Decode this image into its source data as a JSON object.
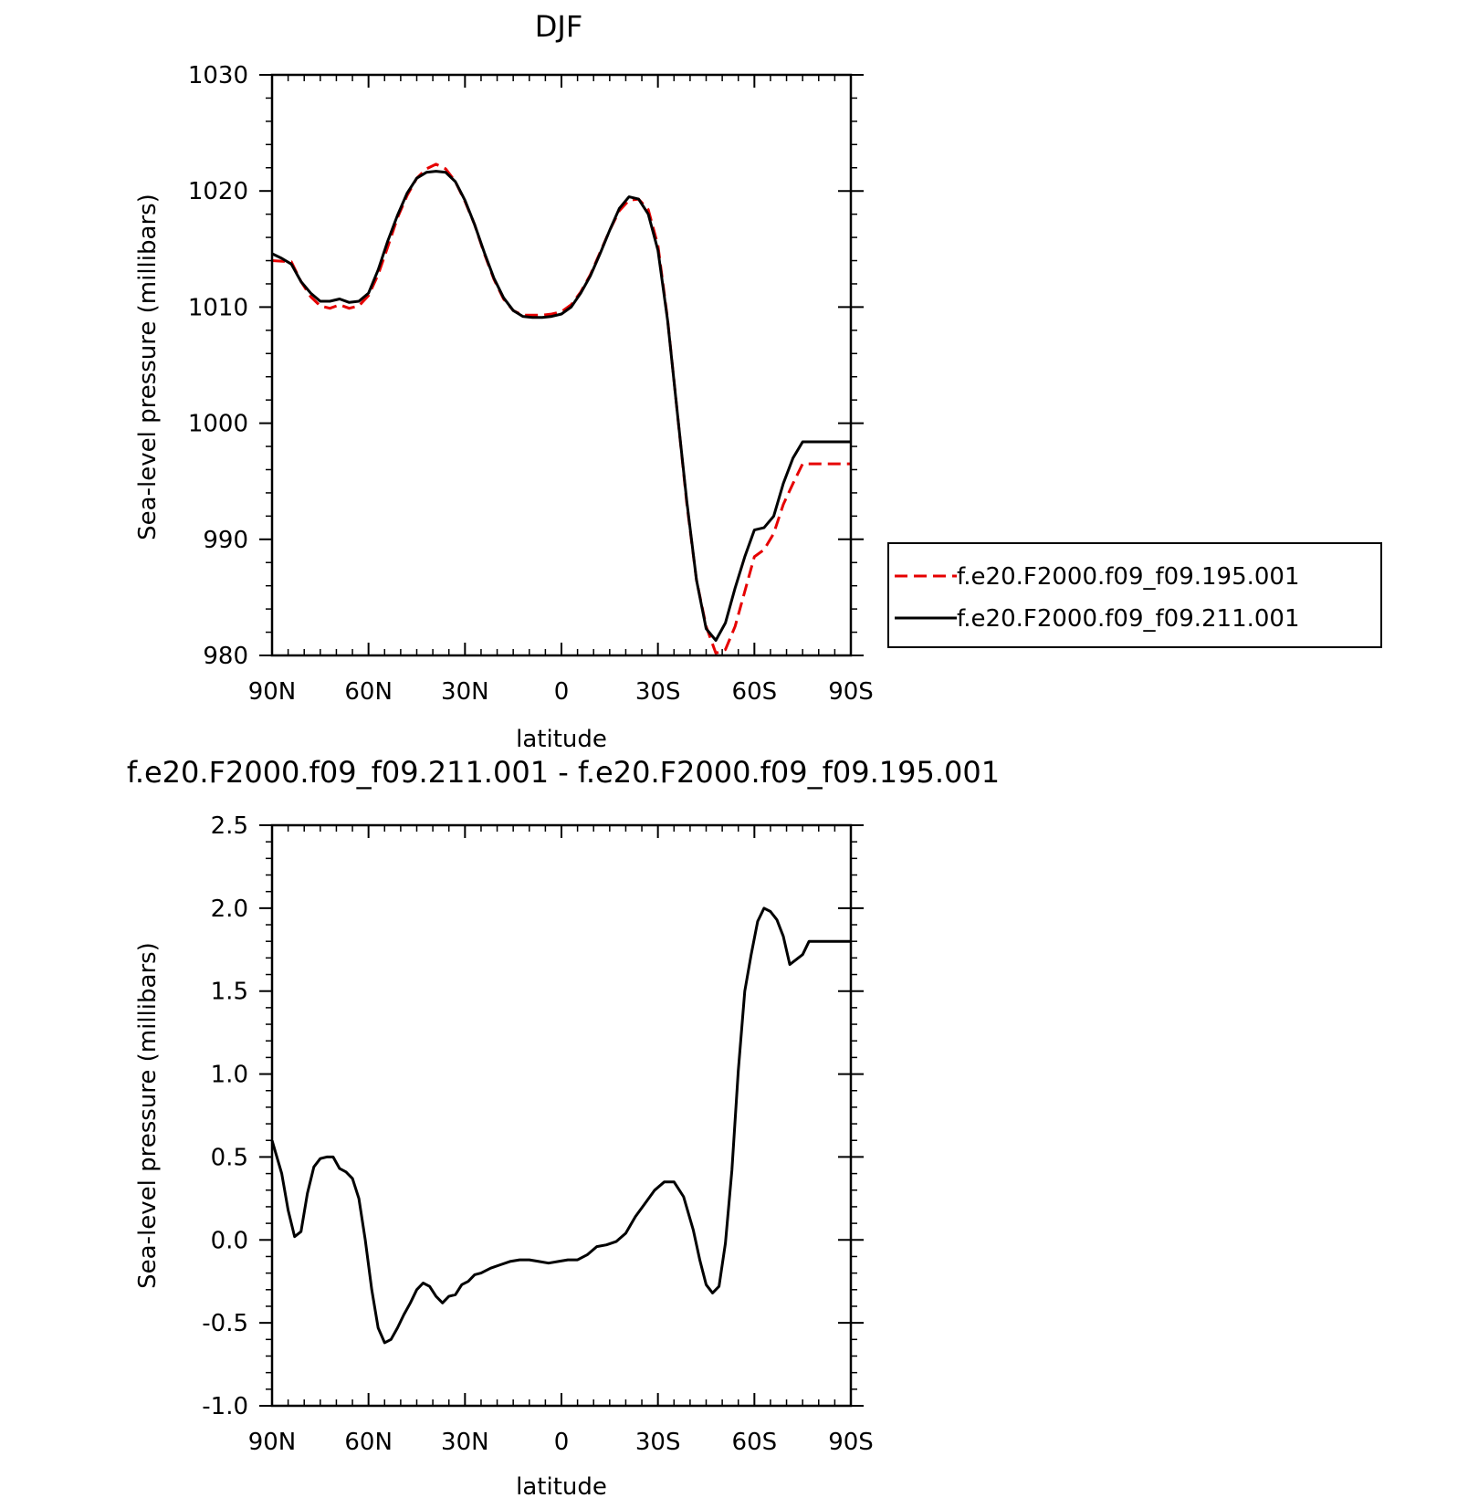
{
  "chart_data": [
    {
      "type": "line",
      "title": "DJF",
      "xlabel": "latitude",
      "ylabel": "Sea-level pressure (millibars)",
      "xlim": [
        90,
        -90
      ],
      "ylim": [
        980,
        1030
      ],
      "x_tick_values": [
        90,
        60,
        30,
        0,
        -30,
        -60,
        -90
      ],
      "x_tick_labels": [
        "90N",
        "60N",
        "30N",
        "0",
        "30S",
        "60S",
        "90S"
      ],
      "y_tick_values": [
        980,
        990,
        1000,
        1010,
        1020,
        1030
      ],
      "y_tick_labels": [
        "980",
        "990",
        "1000",
        "1010",
        "1020",
        "1030"
      ],
      "legend_position": "right",
      "series": [
        {
          "name": "f.e20.F2000.f09_f09.195.001",
          "color": "#e60000",
          "style": "dashed",
          "x": [
            90,
            84,
            81,
            78,
            75,
            72,
            69,
            66,
            63,
            60,
            57,
            54,
            51,
            48,
            45,
            42,
            39,
            36,
            33,
            30,
            27,
            24,
            21,
            18,
            15,
            12,
            9,
            6,
            3,
            0,
            -3,
            -6,
            -9,
            -12,
            -15,
            -18,
            -21,
            -24,
            -27,
            -30,
            -33,
            -36,
            -39,
            -42,
            -45,
            -48,
            -51,
            -54,
            -57,
            -60,
            -63,
            -65,
            -66,
            -69,
            -72,
            -75,
            -78,
            -81,
            -84,
            -87,
            -90
          ],
          "y": [
            1014.0,
            1013.9,
            1012.2,
            1010.9,
            1010.1,
            1009.9,
            1010.2,
            1009.9,
            1010.1,
            1011.0,
            1012.8,
            1015.2,
            1017.7,
            1019.6,
            1021.1,
            1021.9,
            1022.3,
            1021.9,
            1020.8,
            1019.1,
            1017.1,
            1014.6,
            1012.4,
            1010.7,
            1009.7,
            1009.3,
            1009.3,
            1009.3,
            1009.4,
            1009.6,
            1010.2,
            1011.3,
            1012.8,
            1014.7,
            1016.6,
            1018.3,
            1019.2,
            1019.3,
            1018.4,
            1015.3,
            1009.0,
            1001.0,
            993.0,
            986.5,
            982.5,
            980.2,
            980.5,
            982.5,
            985.5,
            988.5,
            989.1,
            990.5,
            993.0,
            994.8,
            996.5,
            996.5,
            996.5,
            996.5,
            996.5,
            996.5,
            996.5
          ],
          "x_clean": [
            90,
            84,
            81,
            78,
            75,
            72,
            69,
            66,
            63,
            60,
            57,
            54,
            51,
            48,
            45,
            42,
            39,
            36,
            33,
            30,
            27,
            24,
            21,
            18,
            15,
            12,
            9,
            6,
            3,
            0,
            -3,
            -6,
            -9,
            -12,
            -15,
            -18,
            -21,
            -24,
            -27,
            -30,
            -33,
            -36,
            -39,
            -42,
            -45,
            -48,
            -51,
            -54,
            -57,
            -60,
            -63,
            -66,
            -69,
            -72,
            -75,
            -78,
            -81,
            -84,
            -87,
            -90
          ],
          "y_clean": [
            1014.0,
            1013.9,
            1012.2,
            1010.9,
            1010.1,
            1009.9,
            1010.2,
            1009.9,
            1010.1,
            1011.0,
            1012.8,
            1015.2,
            1017.7,
            1019.6,
            1021.1,
            1021.9,
            1022.3,
            1021.9,
            1020.8,
            1019.1,
            1017.1,
            1014.6,
            1012.4,
            1010.7,
            1009.7,
            1009.3,
            1009.3,
            1009.3,
            1009.4,
            1009.6,
            1010.2,
            1011.3,
            1012.8,
            1014.7,
            1016.6,
            1018.3,
            1019.2,
            1019.3,
            1018.4,
            1015.3,
            1009.0,
            1001.0,
            993.0,
            986.5,
            982.5,
            980.2,
            980.5,
            982.5,
            985.5,
            988.5,
            989.1,
            990.5,
            993.0,
            994.8,
            996.5,
            996.5,
            996.5,
            996.5,
            996.5,
            996.5
          ]
        },
        {
          "name": "f.e20.F2000.f09_f09.211.001",
          "color": "#000000",
          "style": "solid",
          "x": [
            90,
            87,
            84,
            81,
            78,
            75,
            72,
            69,
            66,
            63,
            60,
            57,
            54,
            51,
            48,
            45,
            42,
            39,
            36,
            33,
            30,
            27,
            24,
            21,
            18,
            15,
            12,
            9,
            6,
            3,
            0,
            -3,
            -6,
            -9,
            -12,
            -15,
            -18,
            -21,
            -24,
            -27,
            -30,
            -33,
            -36,
            -39,
            -42,
            -45,
            -48,
            -51,
            -54,
            -57,
            -60,
            -63,
            -66,
            -69,
            -72,
            -75,
            -78,
            -81,
            -84,
            -87,
            -90
          ],
          "y": [
            1014.6,
            1014.2,
            1013.7,
            1012.2,
            1011.2,
            1010.5,
            1010.5,
            1010.7,
            1010.4,
            1010.5,
            1011.2,
            1013.2,
            1015.7,
            1017.9,
            1019.8,
            1021.1,
            1021.6,
            1021.7,
            1021.6,
            1020.8,
            1019.2,
            1017.1,
            1014.7,
            1012.5,
            1010.8,
            1009.7,
            1009.2,
            1009.1,
            1009.1,
            1009.2,
            1009.4,
            1010.0,
            1011.2,
            1012.7,
            1014.6,
            1016.6,
            1018.5,
            1019.5,
            1019.3,
            1018.0,
            1014.9,
            1008.9,
            1001.0,
            993.2,
            986.5,
            982.3,
            981.3,
            982.8,
            985.8,
            988.5,
            990.8,
            991.0,
            992.0,
            994.8,
            997.0,
            998.4,
            998.4,
            998.4,
            998.4,
            998.4,
            998.4
          ]
        }
      ]
    },
    {
      "type": "line",
      "title": "f.e20.F2000.f09_f09.211.001 - f.e20.F2000.f09_f09.195.001",
      "xlabel": "latitude",
      "ylabel": "Sea-level pressure (millibars)",
      "xlim": [
        90,
        -90
      ],
      "ylim": [
        -1.0,
        2.5
      ],
      "x_tick_values": [
        90,
        60,
        30,
        0,
        -30,
        -60,
        -90
      ],
      "x_tick_labels": [
        "90N",
        "60N",
        "30N",
        "0",
        "30S",
        "60S",
        "90S"
      ],
      "y_tick_values": [
        -1.0,
        -0.5,
        0.0,
        0.5,
        1.0,
        1.5,
        2.0,
        2.5
      ],
      "y_tick_labels": [
        "-1.0",
        "-0.5",
        "0.0",
        "0.5",
        "1.0",
        "1.5",
        "2.0",
        "2.5"
      ],
      "series": [
        {
          "name": "",
          "color": "#000000",
          "style": "solid",
          "x": [
            90,
            87,
            85,
            83,
            81,
            79,
            77,
            75,
            73,
            71,
            69,
            67,
            65,
            63,
            61,
            59,
            57,
            55,
            53,
            51,
            49,
            47,
            45,
            43,
            41,
            39,
            37,
            35,
            33,
            31,
            29,
            27,
            25,
            22,
            19,
            16,
            13,
            10,
            7,
            4,
            1,
            -2,
            -5,
            -8,
            -11,
            -14,
            -17,
            -20,
            -23,
            -26,
            -29,
            -32,
            -35,
            -38,
            -41,
            -43,
            -45,
            -47,
            -49,
            -51,
            -53,
            -55,
            -57,
            -59,
            -61,
            -63,
            -65,
            -67,
            -69,
            -71,
            -73,
            -75,
            -77,
            -79,
            -81,
            -83,
            -85,
            -87,
            -88,
            -90
          ],
          "y": [
            0.6,
            0.4,
            0.18,
            0.02,
            0.05,
            0.28,
            0.44,
            0.49,
            0.5,
            0.5,
            0.43,
            0.41,
            0.37,
            0.25,
            0.0,
            -0.3,
            -0.53,
            -0.62,
            -0.6,
            -0.53,
            -0.45,
            -0.38,
            -0.3,
            -0.26,
            -0.28,
            -0.34,
            -0.38,
            -0.34,
            -0.33,
            -0.27,
            -0.25,
            -0.21,
            -0.2,
            -0.17,
            -0.15,
            -0.13,
            -0.12,
            -0.12,
            -0.13,
            -0.14,
            -0.13,
            -0.12,
            -0.12,
            -0.09,
            -0.04,
            -0.03,
            -0.01,
            0.04,
            0.14,
            0.22,
            0.3,
            0.35,
            0.35,
            0.26,
            0.06,
            -0.12,
            -0.27,
            -0.32,
            -0.28,
            -0.02,
            0.42,
            1.02,
            1.5,
            1.72,
            1.92,
            2.0,
            1.98,
            1.93,
            1.83,
            1.66,
            1.69,
            1.72,
            1.8,
            1.8,
            1.8,
            1.8,
            1.8,
            1.8,
            1.8,
            1.8
          ]
        }
      ]
    }
  ]
}
